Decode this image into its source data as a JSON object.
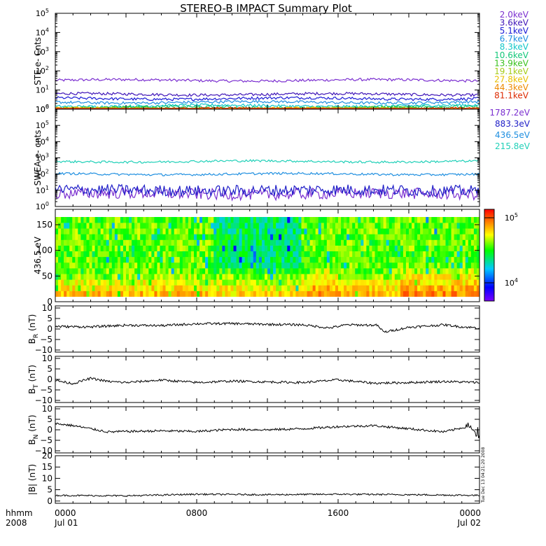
{
  "title": "STEREO-B IMPACT Summary Plot",
  "time_axis": {
    "label_line1": "hhmm",
    "label_line2": "2008",
    "ticks": [
      {
        "hours": 0,
        "time": "0000",
        "date": "Jul 01"
      },
      {
        "hours": 8,
        "time": "0800",
        "date": ""
      },
      {
        "hours": 16,
        "time": "1600",
        "date": ""
      },
      {
        "hours": 24,
        "time": "0000",
        "date": "Jul 02"
      }
    ]
  },
  "timestamp": "Tue Dec 13 04:21:20 2008",
  "chart_data": [
    {
      "type": "line",
      "panel": "ste",
      "ylabel": "STE e- Cnts",
      "yscale": "log",
      "ylim": [
        1,
        100000
      ],
      "ytick_labels": [
        "10^0",
        "10^1",
        "10^2",
        "10^3",
        "10^4",
        "10^5"
      ],
      "x_range_hours": [
        0,
        24
      ],
      "series": [
        {
          "name": "2.0keV",
          "color": "#7b2fd0",
          "level": 32
        },
        {
          "name": "3.6keV",
          "color": "#4016b8",
          "level": 6
        },
        {
          "name": "5.1keV",
          "color": "#1a1ad6",
          "level": 3.6
        },
        {
          "name": "6.7keV",
          "color": "#1f8fe0",
          "level": 2.3
        },
        {
          "name": "8.3keV",
          "color": "#12c8c8",
          "level": 1.5
        },
        {
          "name": "10.6keV",
          "color": "#14c87a",
          "level": 1.25
        },
        {
          "name": "13.9keV",
          "color": "#3ac21e",
          "level": 1.1
        },
        {
          "name": "19.1keV",
          "color": "#a6cc1a",
          "level": 1.05
        },
        {
          "name": "27.8keV",
          "color": "#e8c000",
          "level": 1.02
        },
        {
          "name": "44.3keV",
          "color": "#ee8a00",
          "level": 1.01
        },
        {
          "name": "81.1keV",
          "color": "#dd2a00",
          "level": 1.0
        }
      ]
    },
    {
      "type": "line",
      "panel": "swea",
      "ylabel": "SWEA e- cnts",
      "yscale": "log",
      "ylim": [
        1,
        1000000
      ],
      "ytick_labels": [
        "10^0",
        "10^1",
        "10^2",
        "10^3",
        "10^4",
        "10^5",
        "10^6"
      ],
      "x_range_hours": [
        0,
        24
      ],
      "series": [
        {
          "name": "1787.2eV",
          "color": "#7b2fd0",
          "level": 6
        },
        {
          "name": "883.3eV",
          "color": "#2020c8",
          "level": 10
        },
        {
          "name": "436.5eV",
          "color": "#1f8fe0",
          "level": 100
        },
        {
          "name": "215.8eV",
          "color": "#20d0b8",
          "level": 600
        }
      ]
    },
    {
      "type": "heatmap",
      "panel": "pad",
      "ylabel": "436.5 eV",
      "ylim": [
        0,
        180
      ],
      "yticks": [
        0,
        50,
        100,
        150
      ],
      "data_ylim": [
        10,
        165
      ],
      "x_range_hours": [
        0,
        24
      ],
      "colorbar": {
        "scale": "log",
        "ticks": [
          {
            "value": 10000,
            "label": "10^4"
          },
          {
            "value": 100000,
            "label": "10^5"
          }
        ],
        "colors": [
          "#7a00ff",
          "#0000ff",
          "#00c8ff",
          "#00ff00",
          "#ffff00",
          "#ff8000",
          "#ff0000"
        ]
      }
    },
    {
      "type": "line",
      "panel": "br",
      "ylabel": "B_R (nT)",
      "label_main": "B",
      "label_sub": "R",
      "label_unit": "(nT)",
      "ylim": [
        -11,
        11
      ],
      "yticks": [
        -10,
        -5,
        0,
        5,
        10
      ],
      "x_range_hours": [
        0,
        24
      ],
      "trend_hours": [
        0,
        2,
        4,
        6,
        8,
        10,
        12,
        14,
        15.5,
        16.5,
        18.2,
        18.6,
        20,
        22,
        23,
        24
      ],
      "trend_values": [
        1.2,
        1.0,
        1.8,
        1.6,
        2.5,
        2.6,
        2.2,
        2.0,
        0.5,
        2.0,
        1.8,
        -1.5,
        0.8,
        2.0,
        1.0,
        0.5
      ]
    },
    {
      "type": "line",
      "panel": "bt",
      "ylabel": "B_T (nT)",
      "label_main": "B",
      "label_sub": "T",
      "label_unit": "(nT)",
      "ylim": [
        -11,
        11
      ],
      "yticks": [
        -10,
        -5,
        0,
        5,
        10
      ],
      "x_range_hours": [
        0,
        24
      ],
      "trend_hours": [
        0,
        1,
        2,
        3,
        4,
        6,
        8,
        10,
        12,
        14,
        16,
        18,
        20,
        22,
        24
      ],
      "trend_values": [
        -0.5,
        -2.0,
        0.5,
        -1.0,
        -1.5,
        -0.3,
        -1.5,
        -0.8,
        -1.2,
        -1.5,
        -0.2,
        -1.8,
        -1.5,
        -1.0,
        -1.5
      ]
    },
    {
      "type": "line",
      "panel": "bn",
      "ylabel": "B_N (nT)",
      "label_main": "B",
      "label_sub": "N",
      "label_unit": "(nT)",
      "ylim": [
        -11,
        11
      ],
      "yticks": [
        -10,
        -5,
        0,
        5,
        10
      ],
      "x_range_hours": [
        0,
        24
      ],
      "trend_hours": [
        0,
        1,
        2,
        3,
        4,
        6,
        8,
        10,
        12,
        14,
        16,
        18,
        20,
        22,
        23.3,
        24
      ],
      "trend_values": [
        3.0,
        2.0,
        0.5,
        -1.0,
        -0.8,
        -0.5,
        -0.8,
        0.2,
        0.0,
        0.5,
        1.5,
        2.0,
        0.5,
        -1.0,
        1.5,
        -2.0
      ]
    },
    {
      "type": "line",
      "panel": "bmag",
      "ylabel": "|B| (nT)",
      "label_main": "|B|",
      "label_sub": "",
      "label_unit": "(nT)",
      "ylim": [
        -1,
        20
      ],
      "yticks": [
        0,
        5,
        10,
        15,
        20
      ],
      "x_range_hours": [
        0,
        24
      ],
      "trend_hours": [
        0,
        4,
        8,
        12,
        16,
        20,
        24
      ],
      "trend_values": [
        2.5,
        2.3,
        3.0,
        2.8,
        3.0,
        2.8,
        2.5
      ]
    }
  ]
}
